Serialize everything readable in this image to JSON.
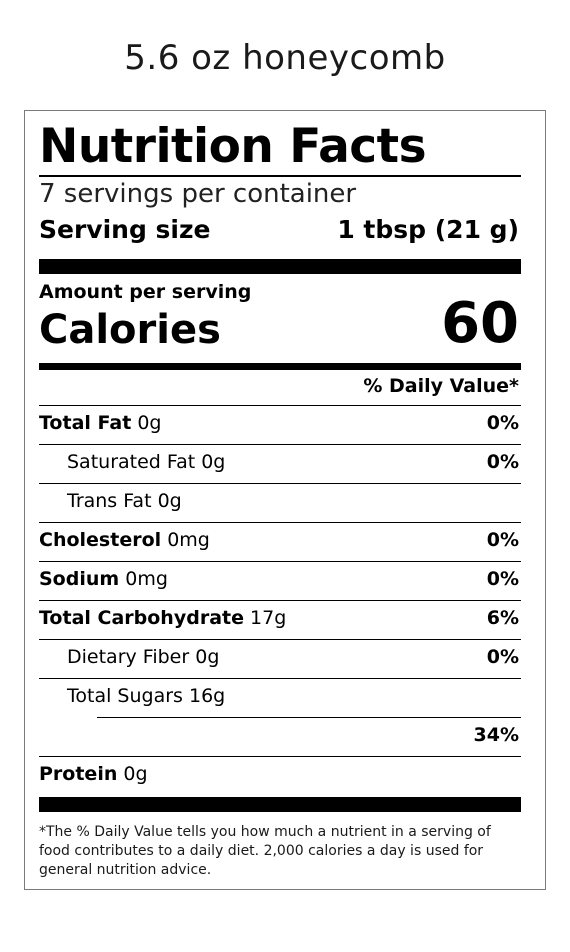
{
  "product": {
    "title": "5.6 oz honeycomb"
  },
  "label": {
    "heading": "Nutrition Facts",
    "servings_per_container": "7 servings per container",
    "serving_size_label": "Serving size",
    "serving_size_value": "1 tbsp (21 g)",
    "amount_per_serving": "Amount per serving",
    "calories_label": "Calories",
    "calories_value": "60",
    "daily_value_header": "% Daily Value*",
    "nutrients": [
      {
        "name": "Total Fat",
        "amount": "0g",
        "dv": "0%"
      },
      {
        "name": "Saturated Fat",
        "amount": "0g",
        "dv": "0%"
      },
      {
        "name": "Trans Fat",
        "amount": "0g",
        "dv": ""
      },
      {
        "name": "Cholesterol",
        "amount": "0mg",
        "dv": "0%"
      },
      {
        "name": "Sodium",
        "amount": "0mg",
        "dv": "0%"
      },
      {
        "name": "Total Carbohydrate",
        "amount": "17g",
        "dv": "6%"
      },
      {
        "name": "Dietary Fiber",
        "amount": "0g",
        "dv": "0%"
      },
      {
        "name": "Total Sugars",
        "amount": "16g",
        "dv": ""
      },
      {
        "name": "",
        "amount": "",
        "dv": "34%"
      },
      {
        "name": "Protein",
        "amount": "0g",
        "dv": ""
      }
    ],
    "footnote": "*The % Daily Value tells you how much a nutrient in a serving of food contributes to a daily diet. 2,000 calories a day is used for general nutrition advice."
  }
}
